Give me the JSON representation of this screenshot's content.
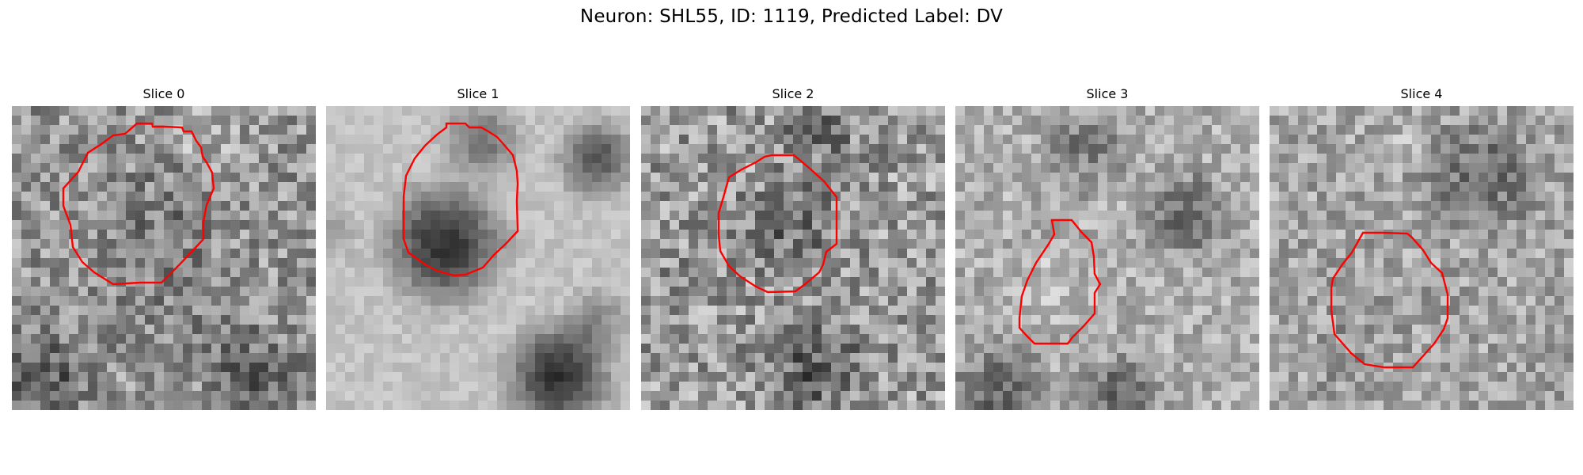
{
  "figure": {
    "title": "Neuron: SHL55, ID: 1119, Predicted Label: DV"
  },
  "slices": [
    {
      "title": "Slice 0",
      "roi_color": "#ff0000"
    },
    {
      "title": "Slice 1",
      "roi_color": "#ff0000"
    },
    {
      "title": "Slice 2",
      "roi_color": "#ff0000"
    },
    {
      "title": "Slice 3",
      "roi_color": "#ff0000"
    },
    {
      "title": "Slice 4",
      "roi_color": "#ff0000"
    }
  ]
}
